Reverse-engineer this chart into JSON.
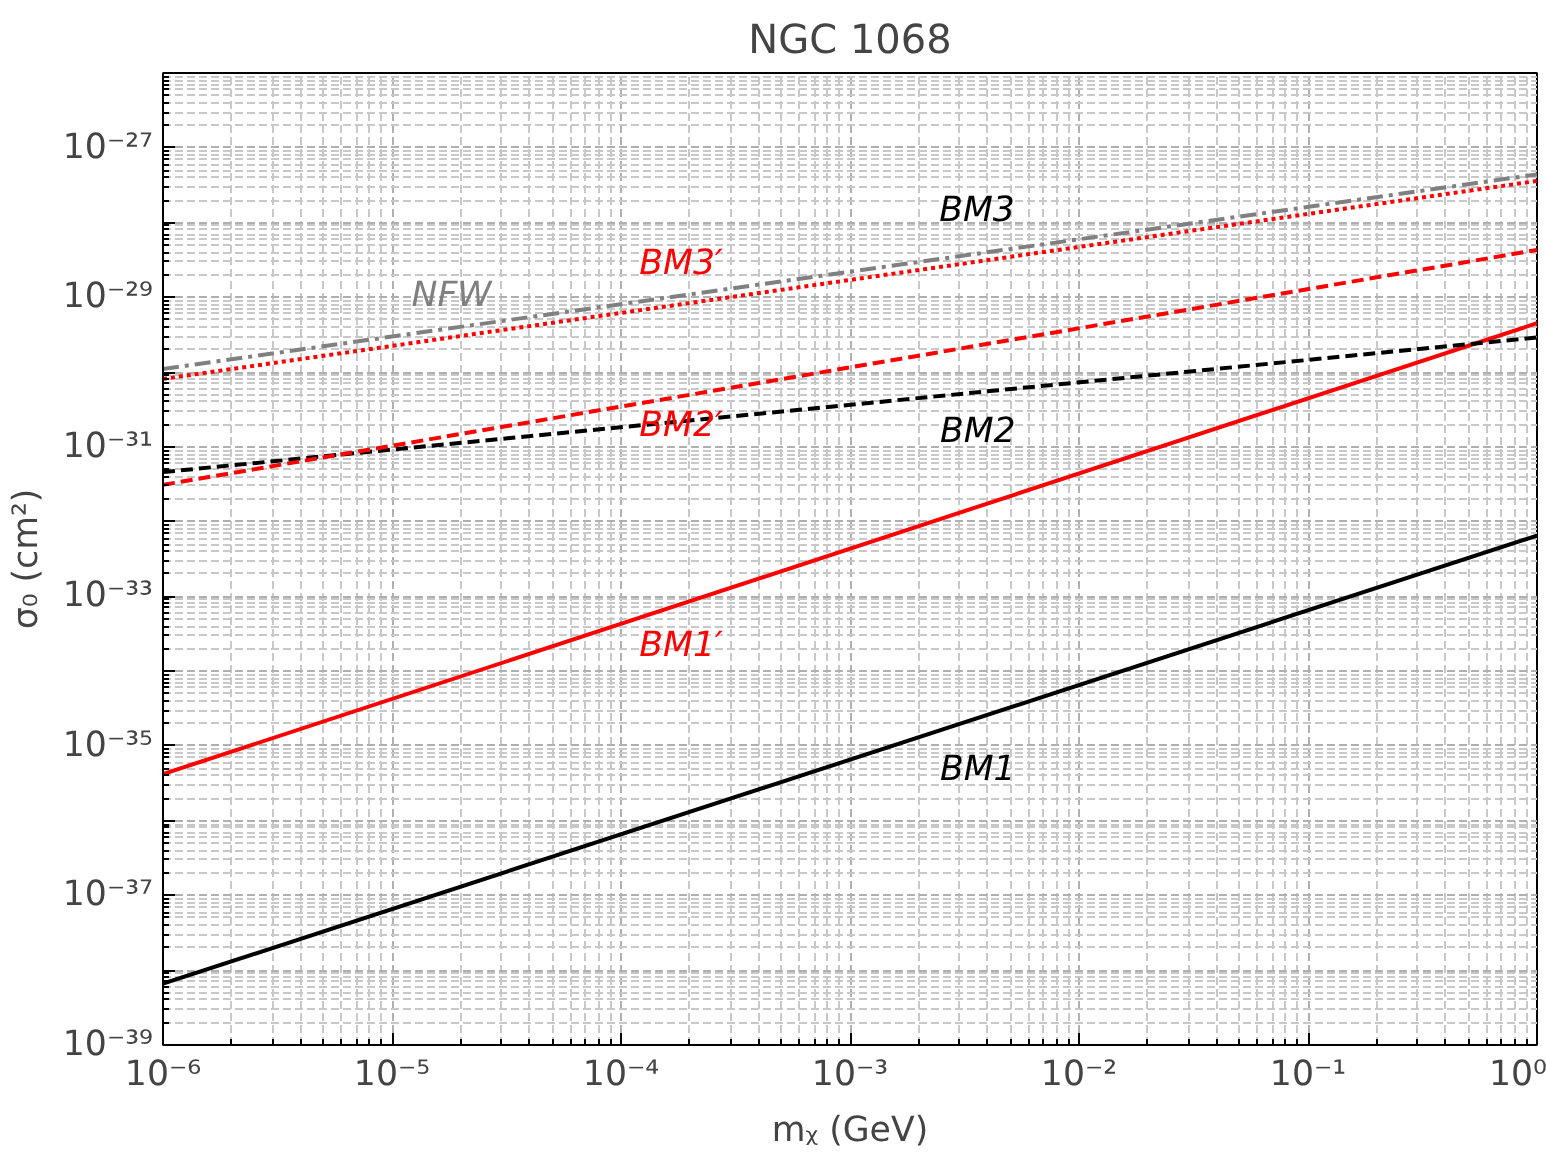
{
  "chart_data": {
    "type": "line",
    "title": "NGC 1068",
    "xlabel": "mᵪ (GeV)",
    "ylabel": "σ₀ (cm²)",
    "log": "xy",
    "grid": true,
    "x": [
      1e-06,
      1
    ],
    "series": [
      {
        "name": "BM1",
        "color": "#000000",
        "line_style": "solid",
        "values": [
          6.6e-39,
          6.5e-33
        ]
      },
      {
        "name": "BM1′",
        "color": "#ff0000",
        "line_style": "solid",
        "values": [
          4.2e-36,
          4.5e-30
        ]
      },
      {
        "name": "BM2",
        "color": "#000000",
        "line_style": "dashed",
        "values": [
          4.6e-32,
          2.9e-30
        ]
      },
      {
        "name": "BM2′",
        "color": "#ff0000",
        "line_style": "dashed",
        "values": [
          3.1e-32,
          4.3e-29
        ]
      },
      {
        "name": "BM3′",
        "color": "#ff0000",
        "line_style": "dotted",
        "values": [
          8.1e-31,
          3.6e-28
        ]
      },
      {
        "name": "NFW",
        "color": "#808080",
        "line_style": "dashdot",
        "values": [
          1.1e-30,
          4.4e-28
        ]
      }
    ],
    "annotations": [
      "BM3"
    ],
    "xlim": [
      1e-06,
      1
    ],
    "ylim": [
      1e-39,
      1e-26
    ],
    "xticks": [
      {
        "value": 1e-06,
        "label": "10⁻⁶"
      },
      {
        "value": 1e-05,
        "label": "10⁻⁵"
      },
      {
        "value": 0.0001,
        "label": "10⁻⁴"
      },
      {
        "value": 0.001,
        "label": "10⁻³"
      },
      {
        "value": 0.01,
        "label": "10⁻²"
      },
      {
        "value": 0.1,
        "label": "10⁻¹"
      },
      {
        "value": 1,
        "label": "10⁰"
      }
    ],
    "yticks": [
      {
        "value": 1e-39,
        "label": "10⁻³⁹"
      },
      {
        "value": 1e-38,
        "label": null
      },
      {
        "value": 1e-37,
        "label": "10⁻³⁷"
      },
      {
        "value": 1e-36,
        "label": null
      },
      {
        "value": 1e-35,
        "label": "10⁻³⁵"
      },
      {
        "value": 1e-34,
        "label": null
      },
      {
        "value": 1e-33,
        "label": "10⁻³³"
      },
      {
        "value": 1e-32,
        "label": null
      },
      {
        "value": 1e-31,
        "label": "10⁻³¹"
      },
      {
        "value": 1e-30,
        "label": null
      },
      {
        "value": 1e-29,
        "label": "10⁻²⁹"
      },
      {
        "value": 1e-28,
        "label": null
      },
      {
        "value": 1e-27,
        "label": "10⁻²⁷"
      }
    ]
  }
}
